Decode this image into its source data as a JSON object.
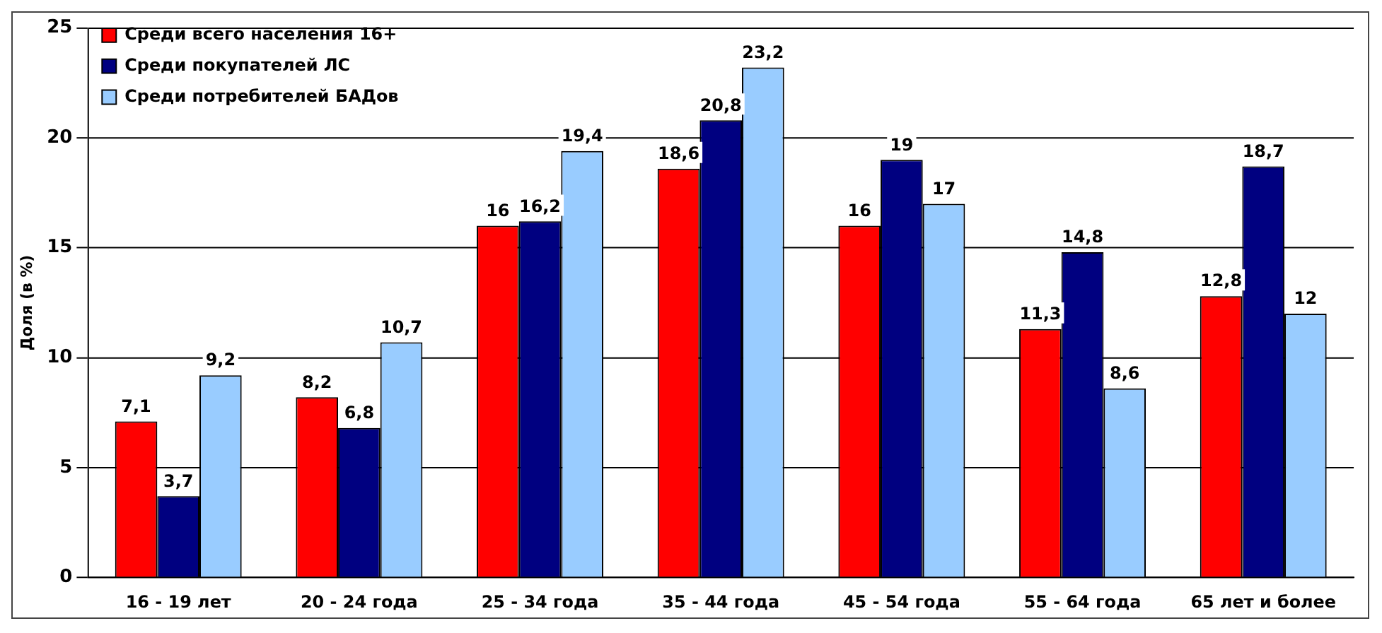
{
  "chart_data": {
    "type": "bar",
    "ylabel": "Доля (в %)",
    "categories": [
      "16 - 19 лет",
      "20 - 24 года",
      "25 - 34 года",
      "35 - 44 года",
      "45 - 54 года",
      "55 - 64 года",
      "65 лет и более"
    ],
    "series": [
      {
        "name": "Среди всего населения 16+",
        "color": "#ff0000",
        "values": [
          7.1,
          8.2,
          16,
          18.6,
          16,
          11.3,
          12.8
        ],
        "value_labels": [
          "7,1",
          "8,2",
          "16",
          "18,6",
          "16",
          "11,3",
          "12,8"
        ]
      },
      {
        "name": "Среди покупателей ЛС",
        "color": "#000080",
        "values": [
          3.7,
          6.8,
          16.2,
          20.8,
          19,
          14.8,
          18.7
        ],
        "value_labels": [
          "3,7",
          "6,8",
          "16,2",
          "20,8",
          "19",
          "14,8",
          "18,7"
        ]
      },
      {
        "name": "Среди потребителей БАДов",
        "color": "#99ccff",
        "values": [
          9.2,
          10.7,
          19.4,
          23.2,
          17,
          8.6,
          12
        ],
        "value_labels": [
          "9,2",
          "10,7",
          "19,4",
          "23,2",
          "17",
          "8,6",
          "12"
        ]
      }
    ],
    "ylim": [
      0,
      25
    ],
    "yticks": [
      0,
      5,
      10,
      15,
      20,
      25
    ],
    "grid": "y",
    "legend": "top left"
  }
}
